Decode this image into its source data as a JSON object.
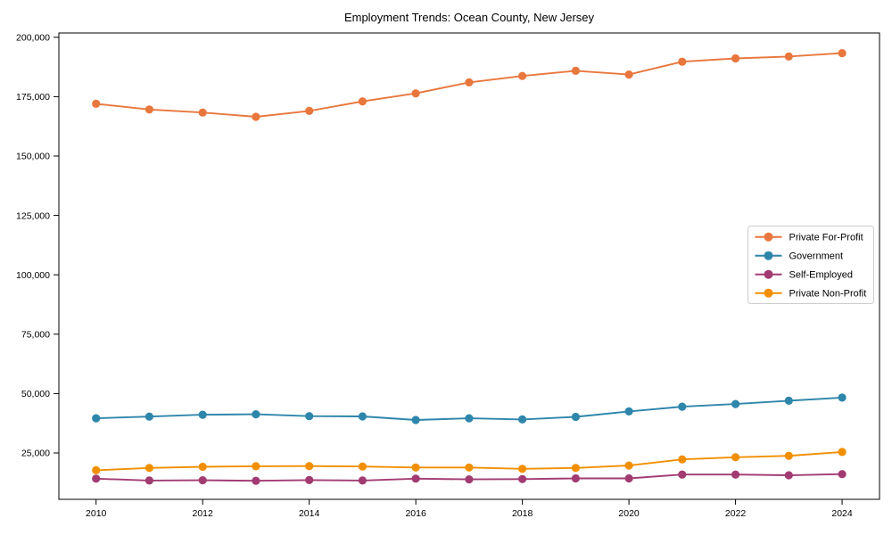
{
  "chart_data": {
    "type": "line",
    "title": "Employment Trends: Ocean County, New Jersey",
    "xlabel": "",
    "ylabel": "",
    "x": [
      2010,
      2011,
      2012,
      2013,
      2014,
      2015,
      2016,
      2017,
      2018,
      2019,
      2020,
      2021,
      2022,
      2023,
      2024
    ],
    "x_ticks": [
      2010,
      2012,
      2014,
      2016,
      2018,
      2020,
      2022,
      2024
    ],
    "x_tick_labels": [
      "2010",
      "2012",
      "2014",
      "2016",
      "2018",
      "2020",
      "2022",
      "2024"
    ],
    "y_ticks": [
      25000,
      50000,
      75000,
      100000,
      125000,
      150000,
      175000,
      200000
    ],
    "y_tick_labels": [
      "25,000",
      "50,000",
      "75,000",
      "100,000",
      "125,000",
      "150,000",
      "175,000",
      "200,000"
    ],
    "xlim": [
      2009.3,
      2024.7
    ],
    "ylim": [
      5200,
      201500
    ],
    "grid": false,
    "legend_position": "center-right",
    "axis_color": "#000000",
    "background_color": "#ffffff",
    "series": [
      {
        "name": "Private For-Profit",
        "color": "#E8773D",
        "values": [
          172000,
          169600,
          168300,
          166500,
          169000,
          173000,
          176400,
          181000,
          183700,
          185900,
          184300,
          189700,
          191100,
          191900,
          193300
        ]
      },
      {
        "name": "Government",
        "color": "#2E86AB",
        "values": [
          39600,
          40300,
          41100,
          41300,
          40500,
          40400,
          38900,
          39600,
          39100,
          40200,
          42500,
          44500,
          45600,
          47000,
          48300
        ]
      },
      {
        "name": "Self-Employed",
        "color": "#A23B72",
        "values": [
          14200,
          13400,
          13500,
          13300,
          13600,
          13400,
          14200,
          13900,
          14000,
          14300,
          14300,
          15900,
          15900,
          15600,
          16100
        ]
      },
      {
        "name": "Private Non-Profit",
        "color": "#F18F01",
        "values": [
          17700,
          18700,
          19200,
          19400,
          19500,
          19300,
          18900,
          18900,
          18300,
          18700,
          19700,
          22300,
          23200,
          23800,
          25400
        ]
      }
    ]
  }
}
